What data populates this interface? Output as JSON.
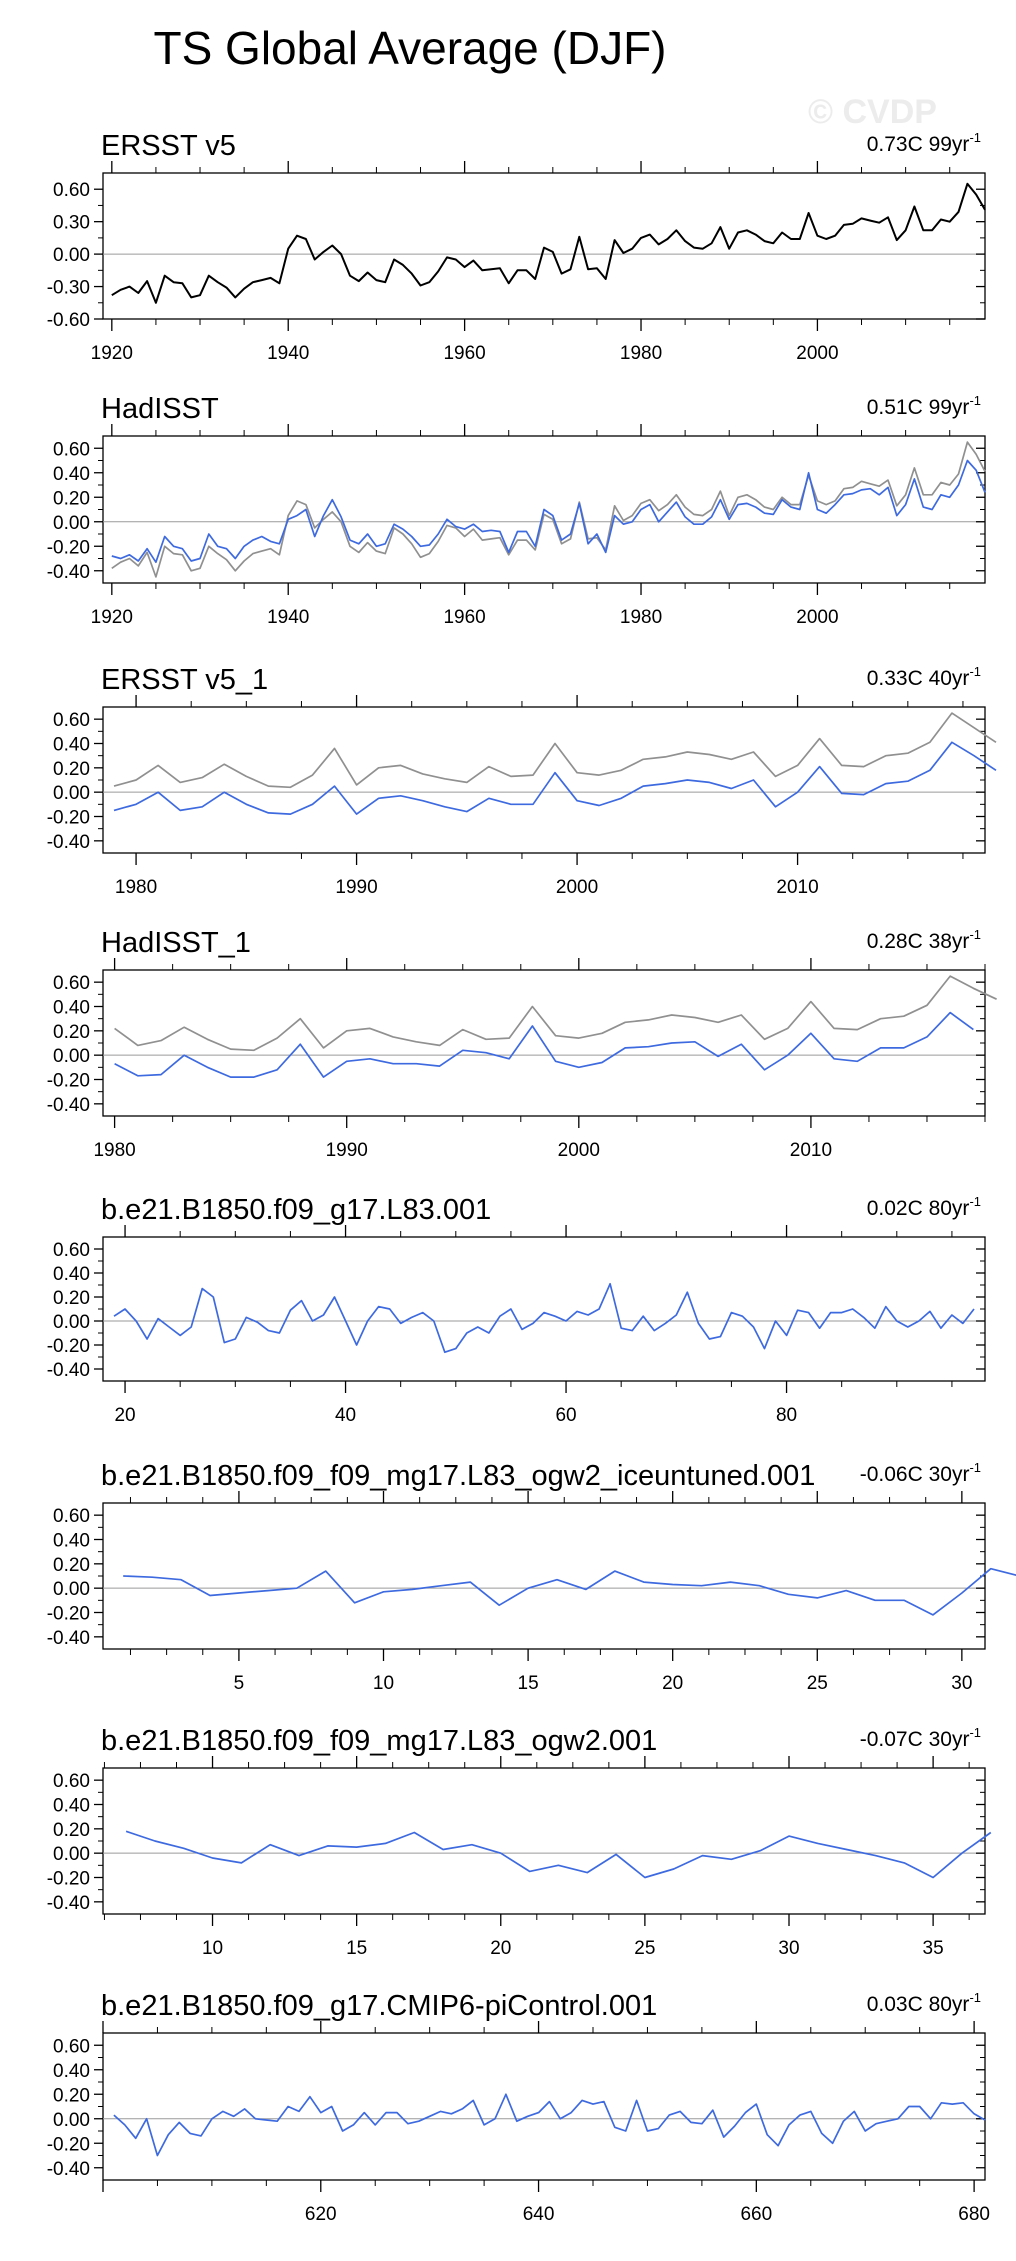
{
  "page": {
    "title": "TS Global Average (DJF)",
    "watermark": "© CVDP"
  },
  "colors": {
    "obs": "#000000",
    "obs_gray": "#909090",
    "model": "#3e6ae0",
    "zero": "#9a9a9a"
  },
  "chart_data": [
    {
      "type": "line",
      "title": "ERSST v5",
      "trend_label": "0.73C 99yr",
      "trend_sup": "-1",
      "xlim": [
        1919,
        2019
      ],
      "ylim": [
        -0.6,
        0.75
      ],
      "xticks": [
        1920,
        1940,
        1960,
        1980,
        2000
      ],
      "yticks": [
        -0.6,
        -0.3,
        0.0,
        0.3,
        0.6
      ],
      "yticklabels": [
        "-0.60",
        "-0.30",
        "0.00",
        "0.30",
        "0.60"
      ],
      "x_start": 1920,
      "series": [
        {
          "role": "obs",
          "values": [
            -0.38,
            -0.33,
            -0.3,
            -0.36,
            -0.25,
            -0.45,
            -0.2,
            -0.26,
            -0.27,
            -0.4,
            -0.38,
            -0.2,
            -0.26,
            -0.31,
            -0.4,
            -0.32,
            -0.26,
            -0.24,
            -0.22,
            -0.27,
            0.05,
            0.17,
            0.14,
            -0.05,
            0.02,
            0.08,
            0.0,
            -0.2,
            -0.25,
            -0.17,
            -0.24,
            -0.26,
            -0.05,
            -0.1,
            -0.18,
            -0.29,
            -0.26,
            -0.16,
            -0.03,
            -0.05,
            -0.12,
            -0.06,
            -0.15,
            -0.14,
            -0.13,
            -0.27,
            -0.15,
            -0.15,
            -0.23,
            0.06,
            0.02,
            -0.18,
            -0.14,
            0.16,
            -0.14,
            -0.13,
            -0.23,
            0.13,
            0.01,
            0.05,
            0.15,
            0.18,
            0.09,
            0.14,
            0.22,
            0.12,
            0.06,
            0.05,
            0.1,
            0.25,
            0.05,
            0.2,
            0.22,
            0.18,
            0.12,
            0.1,
            0.2,
            0.14,
            0.14,
            0.38,
            0.17,
            0.14,
            0.17,
            0.27,
            0.28,
            0.33,
            0.31,
            0.29,
            0.34,
            0.13,
            0.22,
            0.44,
            0.22,
            0.22,
            0.32,
            0.3,
            0.39,
            0.65,
            0.55,
            0.41
          ]
        }
      ]
    },
    {
      "type": "line",
      "title": "HadISST",
      "trend_label": "0.51C 99yr",
      "trend_sup": "-1",
      "xlim": [
        1919,
        2019
      ],
      "ylim": [
        -0.5,
        0.7
      ],
      "xticks": [
        1920,
        1940,
        1960,
        1980,
        2000
      ],
      "yticks": [
        -0.4,
        -0.2,
        0.0,
        0.2,
        0.4,
        0.6
      ],
      "yticklabels": [
        "-0.40",
        "-0.20",
        "0.00",
        "0.20",
        "0.40",
        "0.60"
      ],
      "x_start": 1920,
      "series": [
        {
          "role": "obs_gray",
          "values": [
            -0.38,
            -0.33,
            -0.3,
            -0.36,
            -0.25,
            -0.45,
            -0.2,
            -0.26,
            -0.27,
            -0.4,
            -0.38,
            -0.2,
            -0.26,
            -0.31,
            -0.4,
            -0.32,
            -0.26,
            -0.24,
            -0.22,
            -0.27,
            0.05,
            0.17,
            0.14,
            -0.05,
            0.02,
            0.08,
            0.0,
            -0.2,
            -0.25,
            -0.17,
            -0.24,
            -0.26,
            -0.05,
            -0.1,
            -0.18,
            -0.29,
            -0.26,
            -0.16,
            -0.03,
            -0.05,
            -0.12,
            -0.06,
            -0.15,
            -0.14,
            -0.13,
            -0.27,
            -0.15,
            -0.15,
            -0.23,
            0.06,
            0.02,
            -0.18,
            -0.14,
            0.16,
            -0.14,
            -0.13,
            -0.23,
            0.13,
            0.01,
            0.05,
            0.15,
            0.18,
            0.09,
            0.14,
            0.22,
            0.12,
            0.06,
            0.05,
            0.1,
            0.25,
            0.05,
            0.2,
            0.22,
            0.18,
            0.12,
            0.1,
            0.2,
            0.14,
            0.14,
            0.38,
            0.17,
            0.14,
            0.17,
            0.27,
            0.28,
            0.33,
            0.31,
            0.29,
            0.34,
            0.13,
            0.22,
            0.44,
            0.22,
            0.22,
            0.32,
            0.3,
            0.39,
            0.65,
            0.55,
            0.41
          ]
        },
        {
          "role": "model",
          "values": [
            -0.28,
            -0.3,
            -0.27,
            -0.32,
            -0.22,
            -0.33,
            -0.12,
            -0.2,
            -0.22,
            -0.32,
            -0.3,
            -0.1,
            -0.2,
            -0.22,
            -0.3,
            -0.2,
            -0.15,
            -0.12,
            -0.16,
            -0.18,
            0.02,
            0.05,
            0.1,
            -0.12,
            0.05,
            0.18,
            0.04,
            -0.15,
            -0.18,
            -0.1,
            -0.2,
            -0.18,
            -0.02,
            -0.06,
            -0.12,
            -0.2,
            -0.19,
            -0.1,
            0.02,
            -0.04,
            -0.06,
            -0.02,
            -0.08,
            -0.07,
            -0.08,
            -0.25,
            -0.08,
            -0.08,
            -0.2,
            0.1,
            0.05,
            -0.15,
            -0.1,
            0.15,
            -0.18,
            -0.1,
            -0.25,
            0.05,
            -0.02,
            0.0,
            0.1,
            0.14,
            0.0,
            0.08,
            0.16,
            0.04,
            -0.02,
            -0.02,
            0.04,
            0.18,
            0.02,
            0.14,
            0.15,
            0.12,
            0.07,
            0.06,
            0.18,
            0.12,
            0.1,
            0.4,
            0.1,
            0.07,
            0.14,
            0.22,
            0.23,
            0.26,
            0.27,
            0.22,
            0.28,
            0.05,
            0.14,
            0.35,
            0.12,
            0.1,
            0.22,
            0.2,
            0.3,
            0.5,
            0.42,
            0.24
          ]
        }
      ]
    },
    {
      "type": "line",
      "title": "ERSST v5_1",
      "trend_label": "0.33C 40yr",
      "trend_sup": "-1",
      "xlim": [
        1978.5,
        2018.5
      ],
      "ylim": [
        -0.5,
        0.7
      ],
      "xticks": [
        1980,
        1990,
        2000,
        2010
      ],
      "yticks": [
        -0.4,
        -0.2,
        0.0,
        0.2,
        0.4,
        0.6
      ],
      "yticklabels": [
        "-0.40",
        "-0.20",
        "0.00",
        "0.20",
        "0.40",
        "0.60"
      ],
      "x_start": 1979,
      "series": [
        {
          "role": "obs_gray",
          "values": [
            0.05,
            0.1,
            0.22,
            0.08,
            0.12,
            0.23,
            0.13,
            0.05,
            0.04,
            0.14,
            0.36,
            0.06,
            0.2,
            0.22,
            0.15,
            0.11,
            0.08,
            0.21,
            0.13,
            0.14,
            0.4,
            0.16,
            0.14,
            0.18,
            0.27,
            0.29,
            0.33,
            0.31,
            0.27,
            0.33,
            0.13,
            0.22,
            0.44,
            0.22,
            0.21,
            0.3,
            0.32,
            0.41,
            0.65,
            0.53,
            0.41
          ]
        },
        {
          "role": "model",
          "values": [
            -0.15,
            -0.1,
            0.0,
            -0.15,
            -0.12,
            0.0,
            -0.1,
            -0.17,
            -0.18,
            -0.1,
            0.05,
            -0.18,
            -0.05,
            -0.03,
            -0.07,
            -0.12,
            -0.16,
            -0.05,
            -0.1,
            -0.1,
            0.16,
            -0.07,
            -0.11,
            -0.05,
            0.05,
            0.07,
            0.1,
            0.08,
            0.03,
            0.1,
            -0.12,
            0.0,
            0.21,
            -0.01,
            -0.02,
            0.07,
            0.09,
            0.18,
            0.41,
            0.3,
            0.18
          ]
        }
      ]
    },
    {
      "type": "line",
      "title": "HadISST_1",
      "trend_label": "0.28C 38yr",
      "trend_sup": "-1",
      "xlim": [
        1979.5,
        2017.5
      ],
      "ylim": [
        -0.5,
        0.7
      ],
      "xticks": [
        1980,
        1990,
        2000,
        2010
      ],
      "yticks": [
        -0.4,
        -0.2,
        0.0,
        0.2,
        0.4,
        0.6
      ],
      "yticklabels": [
        "-0.40",
        "-0.20",
        "0.00",
        "0.20",
        "0.40",
        "0.60"
      ],
      "x_start": 1980,
      "series": [
        {
          "role": "obs_gray",
          "values": [
            0.22,
            0.08,
            0.12,
            0.23,
            0.13,
            0.05,
            0.04,
            0.14,
            0.3,
            0.06,
            0.2,
            0.22,
            0.15,
            0.11,
            0.08,
            0.21,
            0.13,
            0.14,
            0.4,
            0.16,
            0.14,
            0.18,
            0.27,
            0.29,
            0.33,
            0.31,
            0.27,
            0.33,
            0.13,
            0.22,
            0.44,
            0.22,
            0.21,
            0.3,
            0.32,
            0.41,
            0.65,
            0.55,
            0.46
          ]
        },
        {
          "role": "model",
          "values": [
            -0.07,
            -0.17,
            -0.16,
            0.0,
            -0.1,
            -0.18,
            -0.18,
            -0.12,
            0.09,
            -0.18,
            -0.05,
            -0.03,
            -0.07,
            -0.07,
            -0.09,
            0.04,
            0.02,
            -0.03,
            0.24,
            -0.05,
            -0.1,
            -0.06,
            0.06,
            0.07,
            0.1,
            0.11,
            -0.01,
            0.09,
            -0.12,
            0.0,
            0.18,
            -0.03,
            -0.05,
            0.06,
            0.06,
            0.15,
            0.35,
            0.21
          ]
        }
      ]
    },
    {
      "type": "line",
      "title": "b.e21.B1850.f09_g17.L83.001",
      "trend_label": "0.02C 80yr",
      "trend_sup": "-1",
      "xlim": [
        18,
        98
      ],
      "ylim": [
        -0.5,
        0.7
      ],
      "xticks": [
        20,
        40,
        60,
        80
      ],
      "yticks": [
        -0.4,
        -0.2,
        0.0,
        0.2,
        0.4,
        0.6
      ],
      "yticklabels": [
        "-0.40",
        "-0.20",
        "0.00",
        "0.20",
        "0.40",
        "0.60"
      ],
      "x_start": 19,
      "series": [
        {
          "role": "model",
          "values": [
            0.04,
            0.1,
            0.0,
            -0.15,
            0.02,
            -0.05,
            -0.12,
            -0.05,
            0.27,
            0.2,
            -0.18,
            -0.15,
            0.03,
            -0.01,
            -0.08,
            -0.1,
            0.09,
            0.17,
            0.0,
            0.05,
            0.2,
            0.0,
            -0.2,
            0.0,
            0.12,
            0.1,
            -0.02,
            0.03,
            0.07,
            0.0,
            -0.26,
            -0.23,
            -0.1,
            -0.05,
            -0.1,
            0.04,
            0.1,
            -0.07,
            -0.02,
            0.07,
            0.04,
            0.0,
            0.08,
            0.05,
            0.1,
            0.31,
            -0.06,
            -0.08,
            0.04,
            -0.08,
            -0.02,
            0.05,
            0.24,
            -0.02,
            -0.15,
            -0.13,
            0.07,
            0.04,
            -0.05,
            -0.23,
            0.0,
            -0.12,
            0.09,
            0.07,
            -0.06,
            0.07,
            0.07,
            0.1,
            0.03,
            -0.06,
            0.12,
            0.0,
            -0.05,
            0.0,
            0.08,
            -0.06,
            0.05,
            -0.02,
            0.1
          ]
        }
      ]
    },
    {
      "type": "line",
      "title": "b.e21.B1850.f09_f09_mg17.L83_ogw2_iceuntuned.001",
      "trend_label": "-0.06C 30yr",
      "trend_sup": "-1",
      "xlim": [
        0.3,
        30.8
      ],
      "ylim": [
        -0.5,
        0.7
      ],
      "xticks": [
        5,
        10,
        15,
        20,
        25,
        30
      ],
      "yticks": [
        -0.4,
        -0.2,
        0.0,
        0.2,
        0.4,
        0.6
      ],
      "yticklabels": [
        "-0.40",
        "-0.20",
        "0.00",
        "0.20",
        "0.40",
        "0.60"
      ],
      "x_start": 1,
      "series": [
        {
          "role": "model",
          "values": [
            0.1,
            0.09,
            0.07,
            -0.06,
            -0.04,
            -0.02,
            0.0,
            0.14,
            -0.12,
            -0.03,
            -0.01,
            0.02,
            0.05,
            -0.14,
            0.0,
            0.07,
            -0.01,
            0.14,
            0.05,
            0.03,
            0.02,
            0.05,
            0.02,
            -0.05,
            -0.08,
            -0.02,
            -0.1,
            -0.1,
            -0.22,
            -0.04,
            0.16,
            0.1
          ]
        }
      ]
    },
    {
      "type": "line",
      "title": "b.e21.B1850.f09_f09_mg17.L83_ogw2.001",
      "trend_label": "-0.07C 30yr",
      "trend_sup": "-1",
      "xlim": [
        6.2,
        36.8
      ],
      "ylim": [
        -0.5,
        0.7
      ],
      "xticks": [
        10,
        15,
        20,
        25,
        30,
        35
      ],
      "yticks": [
        -0.4,
        -0.2,
        0.0,
        0.2,
        0.4,
        0.6
      ],
      "yticklabels": [
        "-0.40",
        "-0.20",
        "0.00",
        "0.20",
        "0.40",
        "0.60"
      ],
      "x_start": 7,
      "series": [
        {
          "role": "model",
          "values": [
            0.18,
            0.1,
            0.04,
            -0.04,
            -0.08,
            0.07,
            -0.02,
            0.06,
            0.05,
            0.08,
            0.17,
            0.03,
            0.07,
            0.0,
            -0.15,
            -0.1,
            -0.16,
            -0.01,
            -0.2,
            -0.13,
            -0.02,
            -0.05,
            0.02,
            0.14,
            0.08,
            0.03,
            -0.02,
            -0.08,
            -0.2,
            0.0,
            0.17
          ]
        }
      ]
    },
    {
      "type": "line",
      "title": "b.e21.B1850.f09_g17.CMIP6-piControl.001",
      "trend_label": "0.03C 80yr",
      "trend_sup": "-1",
      "xlim": [
        600,
        681
      ],
      "ylim": [
        -0.5,
        0.7
      ],
      "xticks": [
        620,
        640,
        660,
        680
      ],
      "yticks": [
        -0.4,
        -0.2,
        0.0,
        0.2,
        0.4,
        0.6
      ],
      "yticklabels": [
        "-0.40",
        "-0.20",
        "0.00",
        "0.20",
        "0.40",
        "0.60"
      ],
      "x_start": 601,
      "series": [
        {
          "role": "model",
          "values": [
            0.03,
            -0.05,
            -0.16,
            0.0,
            -0.3,
            -0.13,
            -0.03,
            -0.12,
            -0.14,
            0.0,
            0.06,
            0.02,
            0.08,
            0.0,
            -0.01,
            -0.02,
            0.1,
            0.06,
            0.18,
            0.05,
            0.1,
            -0.1,
            -0.05,
            0.05,
            -0.05,
            0.05,
            0.05,
            -0.04,
            -0.02,
            0.02,
            0.06,
            0.04,
            0.08,
            0.15,
            -0.05,
            0.0,
            0.2,
            -0.02,
            0.02,
            0.05,
            0.14,
            0.0,
            0.05,
            0.15,
            0.12,
            0.14,
            -0.07,
            -0.1,
            0.15,
            -0.1,
            -0.08,
            0.03,
            0.06,
            -0.03,
            -0.04,
            0.07,
            -0.15,
            -0.06,
            0.05,
            0.12,
            -0.13,
            -0.22,
            -0.05,
            0.03,
            0.06,
            -0.12,
            -0.2,
            -0.02,
            0.06,
            -0.1,
            -0.04,
            -0.02,
            0.0,
            0.1,
            0.1,
            0.0,
            0.13,
            0.12,
            0.13,
            0.04,
            -0.01
          ]
        }
      ]
    }
  ]
}
